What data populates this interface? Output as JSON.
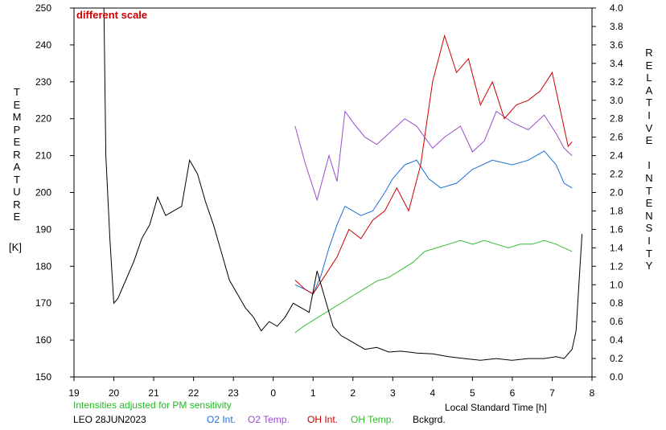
{
  "chart_data": {
    "type": "line",
    "annotation": "different scale",
    "annotation_color": "#cc0000",
    "y_left": {
      "label_letters": [
        "T",
        "E",
        "M",
        "P",
        "E",
        "R",
        "A",
        "T",
        "U",
        "R",
        "E"
      ],
      "unit": "[K]",
      "range": [
        150,
        250
      ],
      "ticks": [
        150,
        160,
        170,
        180,
        190,
        200,
        210,
        220,
        230,
        240,
        250
      ]
    },
    "y_right": {
      "label_letters": [
        "R",
        "E",
        "L",
        "A",
        "T",
        "I",
        "V",
        "E",
        " ",
        "I",
        "N",
        "T",
        "E",
        "N",
        "S",
        "I",
        "T",
        "Y"
      ],
      "range": [
        0.0,
        4.0
      ],
      "ticks": [
        "0.0",
        "0.2",
        "0.4",
        "0.6",
        "0.8",
        "1.0",
        "1.2",
        "1.4",
        "1.6",
        "1.8",
        "2.0",
        "2.2",
        "2.4",
        "2.6",
        "2.8",
        "3.0",
        "3.2",
        "3.4",
        "3.6",
        "3.8",
        "4.0"
      ]
    },
    "x": {
      "label": "Local Standard Time [h]",
      "range": [
        19,
        32
      ],
      "tick_labels": [
        "19",
        "20",
        "21",
        "22",
        "23",
        "0",
        "1",
        "2",
        "3",
        "4",
        "5",
        "6",
        "7",
        "8"
      ]
    },
    "note": "Intensities adjusted for PM sensitivity",
    "note_color": "#22bb22",
    "station": "LEO 28JUN2023",
    "series": [
      {
        "name": "O2 Int.",
        "color": "#1a6fd6",
        "axis": "right",
        "points": [
          [
            24.55,
            1.0
          ],
          [
            24.8,
            0.95
          ],
          [
            25.0,
            0.9
          ],
          [
            25.2,
            1.1
          ],
          [
            25.4,
            1.4
          ],
          [
            25.6,
            1.65
          ],
          [
            25.8,
            1.85
          ],
          [
            26.0,
            1.8
          ],
          [
            26.2,
            1.75
          ],
          [
            26.5,
            1.8
          ],
          [
            26.8,
            2.0
          ],
          [
            27.0,
            2.15
          ],
          [
            27.3,
            2.3
          ],
          [
            27.6,
            2.35
          ],
          [
            27.9,
            2.15
          ],
          [
            28.2,
            2.05
          ],
          [
            28.6,
            2.1
          ],
          [
            29.0,
            2.25
          ],
          [
            29.5,
            2.35
          ],
          [
            30.0,
            2.3
          ],
          [
            30.4,
            2.35
          ],
          [
            30.8,
            2.45
          ],
          [
            31.1,
            2.3
          ],
          [
            31.3,
            2.1
          ],
          [
            31.5,
            2.05
          ]
        ]
      },
      {
        "name": "O2 Temp.",
        "color": "#9b4dca",
        "axis": "left",
        "points": [
          [
            24.55,
            218
          ],
          [
            24.8,
            208
          ],
          [
            25.1,
            198
          ],
          [
            25.4,
            210
          ],
          [
            25.6,
            203
          ],
          [
            25.8,
            222
          ],
          [
            26.0,
            219
          ],
          [
            26.3,
            215
          ],
          [
            26.6,
            213
          ],
          [
            27.0,
            217
          ],
          [
            27.3,
            220
          ],
          [
            27.6,
            218
          ],
          [
            28.0,
            212
          ],
          [
            28.3,
            215
          ],
          [
            28.7,
            218
          ],
          [
            29.0,
            211
          ],
          [
            29.3,
            214
          ],
          [
            29.6,
            222
          ],
          [
            30.0,
            219
          ],
          [
            30.4,
            217
          ],
          [
            30.8,
            221
          ],
          [
            31.1,
            216
          ],
          [
            31.3,
            212
          ],
          [
            31.5,
            210
          ]
        ]
      },
      {
        "name": "OH Int.",
        "color": "#cc0000",
        "axis": "right",
        "points": [
          [
            24.55,
            1.05
          ],
          [
            24.8,
            0.95
          ],
          [
            25.0,
            0.9
          ],
          [
            25.3,
            1.1
          ],
          [
            25.6,
            1.3
          ],
          [
            25.9,
            1.6
          ],
          [
            26.2,
            1.5
          ],
          [
            26.5,
            1.7
          ],
          [
            26.8,
            1.8
          ],
          [
            27.1,
            2.05
          ],
          [
            27.4,
            1.8
          ],
          [
            27.7,
            2.3
          ],
          [
            28.0,
            3.2
          ],
          [
            28.3,
            3.7
          ],
          [
            28.6,
            3.3
          ],
          [
            28.9,
            3.45
          ],
          [
            29.2,
            2.95
          ],
          [
            29.5,
            3.2
          ],
          [
            29.8,
            2.8
          ],
          [
            30.1,
            2.95
          ],
          [
            30.4,
            3.0
          ],
          [
            30.7,
            3.1
          ],
          [
            31.0,
            3.3
          ],
          [
            31.2,
            2.9
          ],
          [
            31.4,
            2.5
          ],
          [
            31.5,
            2.55
          ]
        ]
      },
      {
        "name": "OH Temp.",
        "color": "#33bb33",
        "axis": "left",
        "points": [
          [
            24.55,
            162
          ],
          [
            24.8,
            164
          ],
          [
            25.1,
            166
          ],
          [
            25.4,
            168
          ],
          [
            25.7,
            170
          ],
          [
            26.0,
            172
          ],
          [
            26.3,
            174
          ],
          [
            26.6,
            176
          ],
          [
            26.9,
            177
          ],
          [
            27.2,
            179
          ],
          [
            27.5,
            181
          ],
          [
            27.8,
            184
          ],
          [
            28.1,
            185
          ],
          [
            28.4,
            186
          ],
          [
            28.7,
            187
          ],
          [
            29.0,
            186
          ],
          [
            29.3,
            187
          ],
          [
            29.6,
            186
          ],
          [
            29.9,
            185
          ],
          [
            30.2,
            186
          ],
          [
            30.5,
            186
          ],
          [
            30.8,
            187
          ],
          [
            31.1,
            186
          ],
          [
            31.3,
            185
          ],
          [
            31.5,
            184
          ]
        ]
      },
      {
        "name": "Bckgrd.",
        "color": "#000000",
        "axis": "right",
        "points": [
          [
            19.75,
            4.0
          ],
          [
            19.8,
            2.4
          ],
          [
            19.9,
            1.5
          ],
          [
            20.0,
            0.8
          ],
          [
            20.1,
            0.85
          ],
          [
            20.3,
            1.05
          ],
          [
            20.5,
            1.25
          ],
          [
            20.7,
            1.5
          ],
          [
            20.9,
            1.65
          ],
          [
            21.1,
            1.95
          ],
          [
            21.3,
            1.75
          ],
          [
            21.5,
            1.8
          ],
          [
            21.7,
            1.85
          ],
          [
            21.9,
            2.35
          ],
          [
            22.1,
            2.2
          ],
          [
            22.3,
            1.9
          ],
          [
            22.5,
            1.65
          ],
          [
            22.7,
            1.35
          ],
          [
            22.9,
            1.05
          ],
          [
            23.1,
            0.9
          ],
          [
            23.3,
            0.75
          ],
          [
            23.5,
            0.65
          ],
          [
            23.7,
            0.5
          ],
          [
            23.9,
            0.6
          ],
          [
            24.1,
            0.55
          ],
          [
            24.3,
            0.65
          ],
          [
            24.5,
            0.8
          ],
          [
            24.7,
            0.75
          ],
          [
            24.9,
            0.7
          ],
          [
            25.1,
            1.15
          ],
          [
            25.3,
            0.85
          ],
          [
            25.5,
            0.55
          ],
          [
            25.7,
            0.45
          ],
          [
            25.9,
            0.4
          ],
          [
            26.1,
            0.35
          ],
          [
            26.3,
            0.3
          ],
          [
            26.6,
            0.32
          ],
          [
            26.9,
            0.27
          ],
          [
            27.2,
            0.28
          ],
          [
            27.6,
            0.26
          ],
          [
            28.0,
            0.25
          ],
          [
            28.4,
            0.22
          ],
          [
            28.8,
            0.2
          ],
          [
            29.2,
            0.18
          ],
          [
            29.6,
            0.2
          ],
          [
            30.0,
            0.18
          ],
          [
            30.4,
            0.2
          ],
          [
            30.8,
            0.2
          ],
          [
            31.1,
            0.22
          ],
          [
            31.3,
            0.2
          ],
          [
            31.5,
            0.3
          ],
          [
            31.6,
            0.5
          ],
          [
            31.7,
            1.2
          ],
          [
            31.75,
            1.55
          ]
        ]
      }
    ]
  }
}
